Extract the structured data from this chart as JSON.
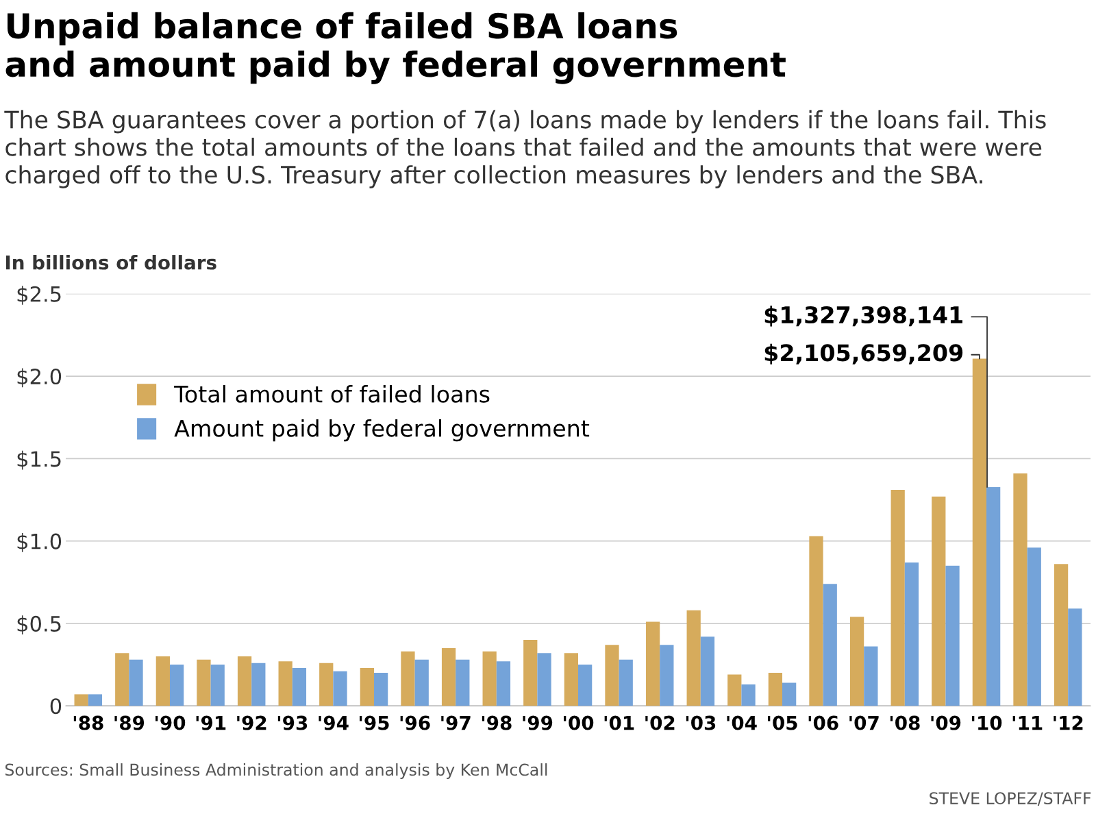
{
  "chart_data": {
    "type": "bar",
    "title": "Unpaid balance of failed SBA loans\nand amount paid by federal government",
    "subtitle": "The SBA guarantees cover a portion of 7(a) loans made by lenders if the loans fail. This chart shows the total amounts of the loans that failed and the amounts that were were charged off to the U.S. Treasury after collection measures by lenders and the SBA.",
    "ylabel": "In billions of dollars",
    "categories": [
      "'88",
      "'89",
      "'90",
      "'91",
      "'92",
      "'93",
      "'94",
      "'95",
      "'96",
      "'97",
      "'98",
      "'99",
      "'00",
      "'01",
      "'02",
      "'03",
      "'04",
      "'05",
      "'06",
      "'07",
      "'08",
      "'09",
      "'10",
      "'11",
      "'12"
    ],
    "series": [
      {
        "name": "Total amount of failed loans",
        "color": "#d6ab5c",
        "values": [
          0.07,
          0.32,
          0.3,
          0.28,
          0.3,
          0.27,
          0.26,
          0.23,
          0.33,
          0.35,
          0.33,
          0.4,
          0.32,
          0.37,
          0.51,
          0.58,
          0.19,
          0.2,
          1.03,
          0.54,
          1.31,
          1.27,
          2.106,
          1.41,
          0.86
        ]
      },
      {
        "name": "Amount paid by federal government",
        "color": "#74a3d9",
        "values": [
          0.07,
          0.28,
          0.25,
          0.25,
          0.26,
          0.23,
          0.21,
          0.2,
          0.28,
          0.28,
          0.27,
          0.32,
          0.25,
          0.28,
          0.37,
          0.42,
          0.13,
          0.14,
          0.74,
          0.36,
          0.87,
          0.85,
          1.327,
          0.96,
          0.59
        ]
      }
    ],
    "ylim": [
      0,
      2.5
    ],
    "yticks": [
      {
        "value": 0,
        "label": "0"
      },
      {
        "value": 0.5,
        "label": "$0.5"
      },
      {
        "value": 1,
        "label": "$1.0"
      },
      {
        "value": 1.5,
        "label": "$1.5"
      },
      {
        "value": 2,
        "label": "$2.0"
      },
      {
        "value": 2.5,
        "label": "$2.5"
      }
    ],
    "grid": "y",
    "legend": "top left",
    "annotations": [
      {
        "text": "$1,327,398,141",
        "x": "'10",
        "y": 1.327
      },
      {
        "text": "$2,105,659,209",
        "x": "'10",
        "y": 2.106
      },
      "Sources: Small Business Administration and analysis by Ken McCall",
      "STEVE LOPEZ/STAFF"
    ]
  }
}
